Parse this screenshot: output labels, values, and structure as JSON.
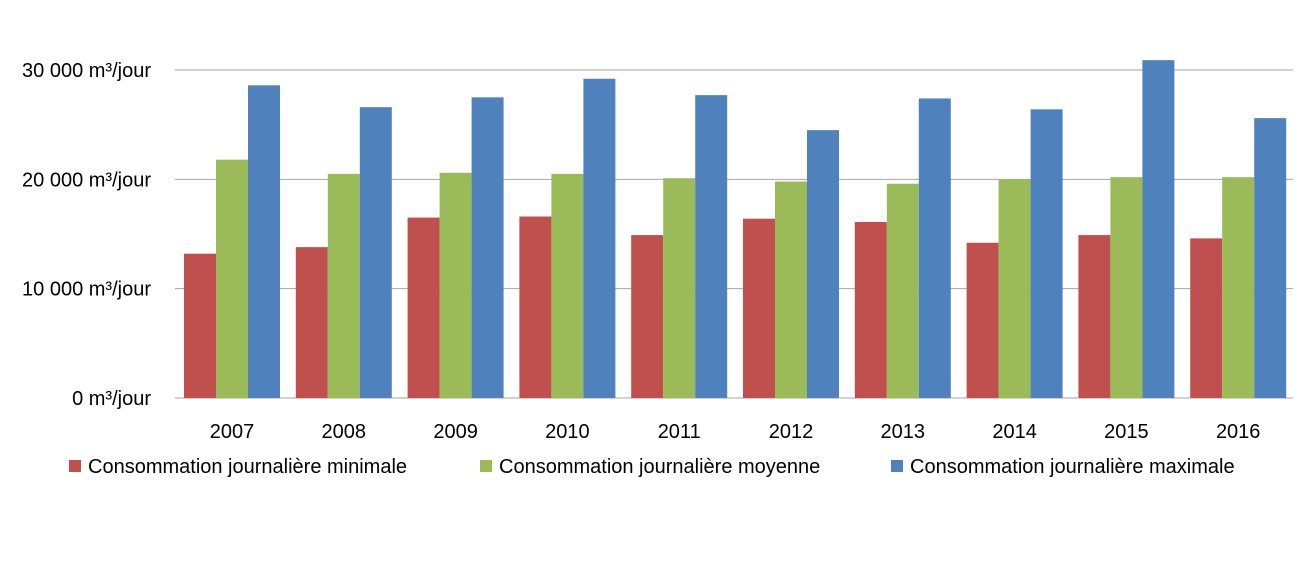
{
  "chart_data": {
    "type": "bar",
    "title": "",
    "xlabel": "",
    "ylabel": "",
    "categories": [
      "2007",
      "2008",
      "2009",
      "2010",
      "2011",
      "2012",
      "2013",
      "2014",
      "2015",
      "2016"
    ],
    "series": [
      {
        "name": "Consommation journalière minimale",
        "color": "#c0504d",
        "values": [
          13200,
          13800,
          16500,
          16600,
          14900,
          16400,
          16100,
          14200,
          14900,
          14600
        ]
      },
      {
        "name": "Consommation journalière moyenne",
        "color": "#9bbb59",
        "values": [
          21800,
          20500,
          20600,
          20500,
          20100,
          19800,
          19600,
          20000,
          20200,
          20200
        ]
      },
      {
        "name": "Consommation journalière maximale",
        "color": "#4f81bd",
        "values": [
          28600,
          26600,
          27500,
          29200,
          27700,
          24500,
          27400,
          26400,
          30900,
          25600
        ]
      }
    ],
    "ylim": [
      0,
      30000
    ],
    "yticks": [
      {
        "value": 0,
        "label": "0 m³/jour"
      },
      {
        "value": 10000,
        "label": "10 000 m³/jour"
      },
      {
        "value": 20000,
        "label": "20 000 m³/jour"
      },
      {
        "value": 30000,
        "label": "30 000 m³/jour"
      }
    ],
    "grid": true,
    "legend_position": "bottom",
    "gridline_color": "#a6a6a6"
  }
}
